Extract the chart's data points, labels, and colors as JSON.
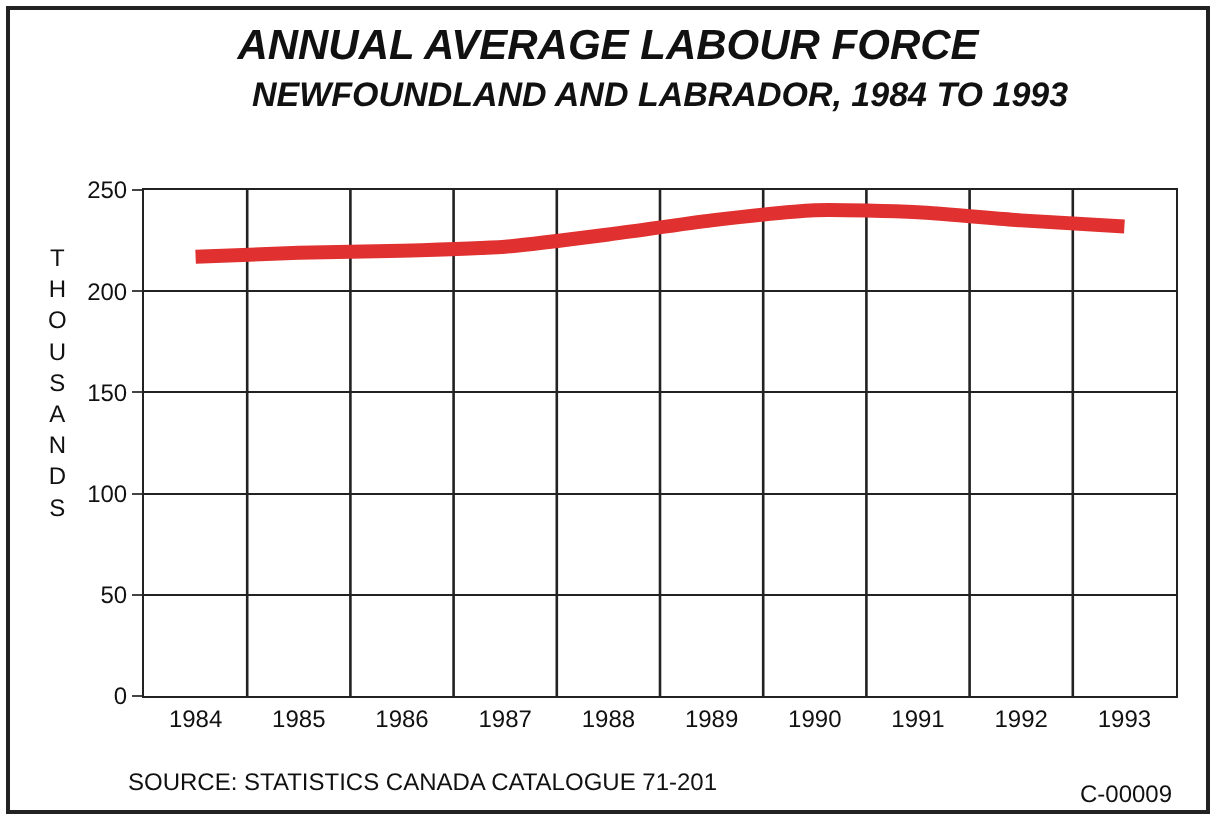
{
  "chart_data": {
    "type": "line",
    "title": "ANNUAL AVERAGE LABOUR FORCE",
    "subtitle": "NEWFOUNDLAND AND LABRADOR, 1984 TO 1993",
    "ylabel": "THOUSANDS",
    "categories": [
      "1984",
      "1985",
      "1986",
      "1987",
      "1988",
      "1989",
      "1990",
      "1991",
      "1992",
      "1993"
    ],
    "series": [
      {
        "color": "#e03030",
        "values": [
          217,
          219,
          220,
          222,
          228,
          235,
          240,
          239,
          235,
          232
        ]
      }
    ],
    "ylim": [
      0,
      250
    ],
    "yticks": [
      0,
      50,
      100,
      150,
      200,
      250
    ],
    "grid": true,
    "marker": "none",
    "line_style": "solid",
    "annotations": [
      "SOURCE: STATISTICS CANADA CATALOGUE 71-201",
      "C-00009"
    ]
  }
}
